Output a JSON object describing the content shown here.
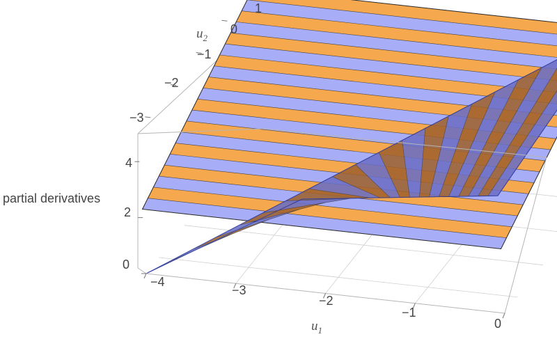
{
  "chart_data": {
    "type": "surface3d",
    "title": "",
    "zlabel": "partial derivatives",
    "axes": {
      "x": {
        "name": "u",
        "subscript": "1",
        "ticks": [
          "−4",
          "−3",
          "−2",
          "−1",
          "0"
        ],
        "range": [
          -4,
          0
        ]
      },
      "y": {
        "name": "u",
        "subscript": "2",
        "ticks": [
          "−3",
          "−2",
          "−1",
          "0",
          "1"
        ],
        "range": [
          -3.5,
          1
        ]
      },
      "z": {
        "ticks": [
          "0",
          "2",
          "4"
        ],
        "range": [
          0,
          5
        ]
      }
    },
    "grid": true,
    "series": [
      {
        "surface": "striped-plane",
        "colors": [
          "#f5a84d",
          "#a8adf8"
        ],
        "stripes": 20,
        "corners": [
          [
            -4,
            1,
            5
          ],
          [
            0,
            1,
            5
          ],
          [
            0,
            -3.5,
            2.3
          ],
          [
            -4,
            -3.5,
            2.3
          ]
        ]
      },
      {
        "surface": "striped-wedge",
        "colors": [
          "#a0622f",
          "#6c6fc4"
        ],
        "stripes": 20,
        "corners": [
          [
            -4,
            -3.5,
            0
          ],
          [
            -2.2,
            -3.5,
            3.3
          ],
          [
            0,
            1,
            4.9
          ],
          [
            0,
            -3.5,
            4.2
          ]
        ]
      }
    ]
  }
}
